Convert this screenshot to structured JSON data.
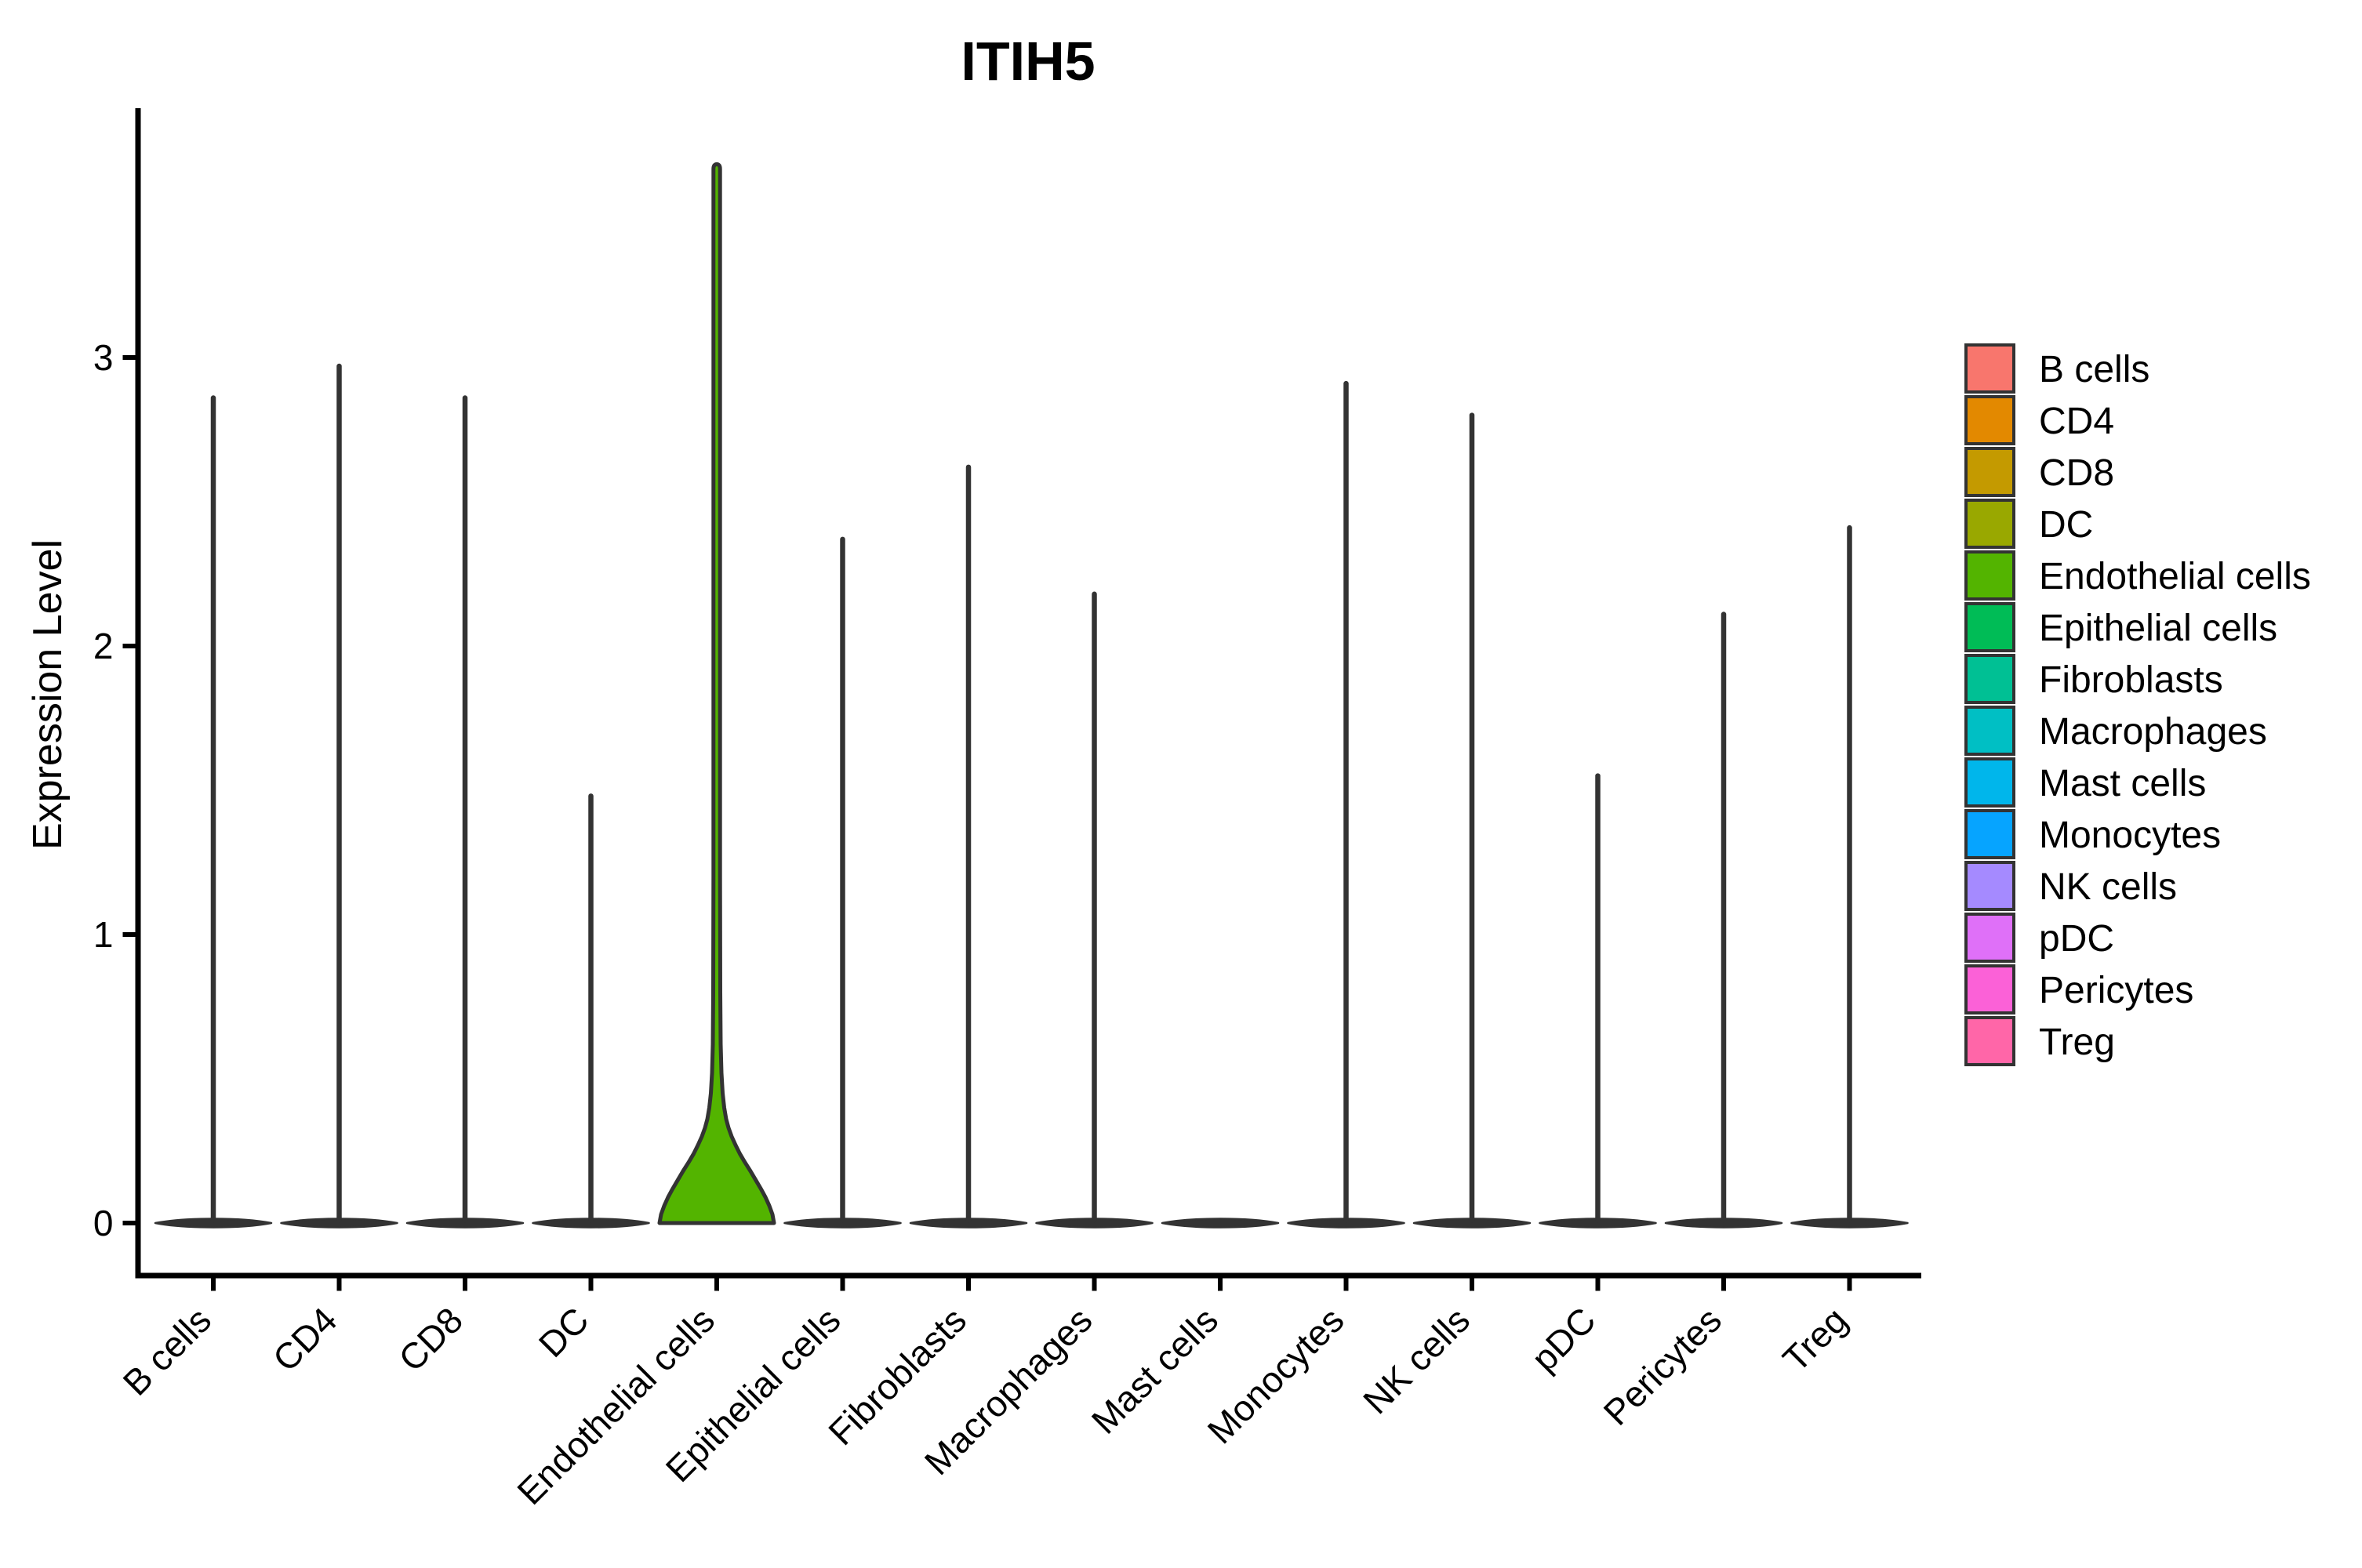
{
  "figure": {
    "title": "ITIH5",
    "y_axis_label": "Expression Level"
  },
  "chart_data": {
    "type": "violin",
    "title": "ITIH5",
    "xlabel": "",
    "ylabel": "Expression Level",
    "ylim": [
      -0.08,
      3.8
    ],
    "yticks": [
      0,
      1,
      2,
      3
    ],
    "grid": false,
    "legend_position": "right",
    "x_label_angle": 45,
    "categories": [
      "B cells",
      "CD4",
      "CD8",
      "DC",
      "Endothelial cells",
      "Epithelial cells",
      "Fibroblasts",
      "Macrophages",
      "Mast cells",
      "Monocytes",
      "NK cells",
      "pDC",
      "Pericytes",
      "Treg"
    ],
    "series": [
      {
        "name": "B cells",
        "color": "#F8766D",
        "max_expression": 2.86
      },
      {
        "name": "CD4",
        "color": "#E38900",
        "max_expression": 2.97
      },
      {
        "name": "CD8",
        "color": "#C49A00",
        "max_expression": 2.86
      },
      {
        "name": "DC",
        "color": "#99A800",
        "max_expression": 1.48
      },
      {
        "name": "Endothelial cells",
        "color": "#53B400",
        "max_expression": 3.67,
        "body_profile": {
          "values": [
            0,
            0.03,
            0.06,
            0.09,
            0.12,
            0.15,
            0.18,
            0.21,
            0.24,
            0.27,
            0.3,
            0.33,
            0.36,
            0.4,
            0.45,
            0.52,
            0.62,
            0.8,
            1.2
          ],
          "half_widths": [
            73,
            71,
            67,
            62,
            56,
            49.5,
            43,
            36,
            29.5,
            24,
            19,
            15,
            12,
            9.5,
            7.5,
            6,
            5,
            4.5,
            4.2
          ]
        }
      },
      {
        "name": "Epithelial cells",
        "color": "#00BC56",
        "max_expression": 2.37
      },
      {
        "name": "Fibroblasts",
        "color": "#00C094",
        "max_expression": 2.62
      },
      {
        "name": "Macrophages",
        "color": "#00BFC4",
        "max_expression": 2.18
      },
      {
        "name": "Mast cells",
        "color": "#00B6EB",
        "max_expression": 0
      },
      {
        "name": "Monocytes",
        "color": "#06A4FF",
        "max_expression": 2.91
      },
      {
        "name": "NK cells",
        "color": "#A58AFF",
        "max_expression": 2.8
      },
      {
        "name": "pDC",
        "color": "#DF70F8",
        "max_expression": 1.55
      },
      {
        "name": "Pericytes",
        "color": "#FB61D7",
        "max_expression": 2.11
      },
      {
        "name": "Treg",
        "color": "#FF66A8",
        "max_expression": 2.41
      }
    ]
  },
  "legend": {
    "items": [
      {
        "label": "B cells",
        "color": "#F8766D"
      },
      {
        "label": "CD4",
        "color": "#E38900"
      },
      {
        "label": "CD8",
        "color": "#C49A00"
      },
      {
        "label": "DC",
        "color": "#99A800"
      },
      {
        "label": "Endothelial cells",
        "color": "#53B400"
      },
      {
        "label": "Epithelial cells",
        "color": "#00BC56"
      },
      {
        "label": "Fibroblasts",
        "color": "#00C094"
      },
      {
        "label": "Macrophages",
        "color": "#00BFC4"
      },
      {
        "label": "Mast cells",
        "color": "#00B6EB"
      },
      {
        "label": "Monocytes",
        "color": "#06A4FF"
      },
      {
        "label": "NK cells",
        "color": "#A58AFF"
      },
      {
        "label": "pDC",
        "color": "#DF70F8"
      },
      {
        "label": "Pericytes",
        "color": "#FB61D7"
      },
      {
        "label": "Treg",
        "color": "#FF66A8"
      }
    ]
  }
}
